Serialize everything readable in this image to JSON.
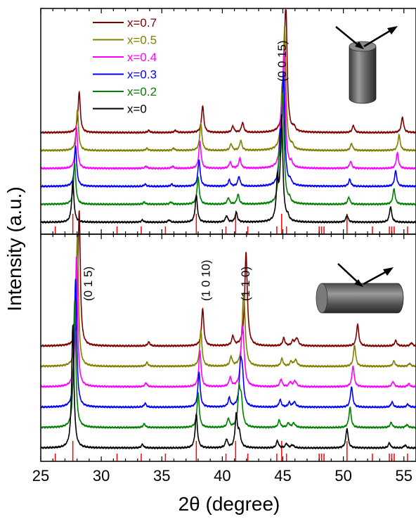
{
  "chart_data": {
    "type": "line",
    "xlabel": "2θ (degree)",
    "ylabel": "Intensity (a.u.)",
    "xlim": [
      25,
      56
    ],
    "x_ticks": [
      25,
      30,
      35,
      40,
      45,
      50,
      55
    ],
    "legend_position": "top-left",
    "series": [
      {
        "name": "x=0",
        "x": 0,
        "color": "#000000"
      },
      {
        "name": "x=0.2",
        "x": 0.2,
        "color": "#008000"
      },
      {
        "name": "x=0.3",
        "x": 0.3,
        "color": "#0000ff"
      },
      {
        "name": "x=0.4",
        "x": 0.4,
        "color": "#ff00ff"
      },
      {
        "name": "x=0.5",
        "x": 0.5,
        "color": "#808000"
      },
      {
        "name": "x=0.7",
        "x": 0.7,
        "color": "#800000"
      }
    ],
    "reference_peaks": [
      26.2,
      27.65,
      31.3,
      33.3,
      35.3,
      37.85,
      40.3,
      41.1,
      42.1,
      44.5,
      44.9,
      45.3,
      48.0,
      48.2,
      48.4,
      50.3,
      52.4,
      53.8,
      54.0,
      54.2,
      55.3
    ],
    "reference_color": "#ff0000",
    "panels": [
      {
        "name": "top",
        "orientation_note": "cylinder-upright",
        "annotations": [
          {
            "text": "(0 0 15)",
            "x": 44.9
          }
        ],
        "peaks_base": [
          {
            "pos": 27.65,
            "h": 58
          },
          {
            "pos": 33.4,
            "h": 3
          },
          {
            "pos": 35.6,
            "h": 3
          },
          {
            "pos": 37.85,
            "h": 38
          },
          {
            "pos": 40.35,
            "h": 9
          },
          {
            "pos": 41.15,
            "h": 14
          },
          {
            "pos": 44.55,
            "h": 55
          },
          {
            "pos": 45.4,
            "h": 6
          },
          {
            "pos": 50.3,
            "h": 10
          },
          {
            "pos": 53.9,
            "h": 22
          }
        ],
        "peak_00015_heights": [
          148,
          152,
          156,
          160,
          165,
          170
        ]
      },
      {
        "name": "bottom",
        "orientation_note": "cylinder-lying",
        "annotations": [
          {
            "text": "(0 1 5)",
            "x": 28.9
          },
          {
            "text": "(1 0 10)",
            "x": 38.6
          },
          {
            "text": "(1 1 0)",
            "x": 41.9
          }
        ],
        "peaks_base": [
          {
            "pos": 27.65,
            "h": 175
          },
          {
            "pos": 33.4,
            "h": 5
          },
          {
            "pos": 37.85,
            "h": 48
          },
          {
            "pos": 40.35,
            "h": 12
          },
          {
            "pos": 41.15,
            "h": 45
          },
          {
            "pos": 44.55,
            "h": 10
          },
          {
            "pos": 45.3,
            "h": 6
          },
          {
            "pos": 50.3,
            "h": 28
          },
          {
            "pos": 53.8,
            "h": 7
          },
          {
            "pos": 55.1,
            "h": 4
          }
        ]
      }
    ]
  }
}
